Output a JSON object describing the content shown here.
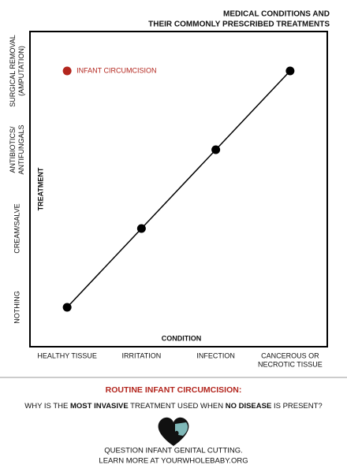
{
  "chart_data": {
    "type": "line",
    "title": [
      "MEDICAL CONDITIONS AND",
      "THEIR COMMONLY PRESCRIBED TREATMENTS"
    ],
    "x_label": "CONDITION",
    "y_label": "TREATMENT",
    "categories": [
      [
        "HEALTHY TISSUE"
      ],
      [
        "IRRITATION"
      ],
      [
        "INFECTION"
      ],
      [
        "CANCEROUS OR",
        "NECROTIC TISSUE"
      ]
    ],
    "y_categories": [
      [
        "NOTHING"
      ],
      [
        "CREAM/SALVE"
      ],
      [
        "ANTIBIOTICS/",
        "ANTIFUNGALS"
      ],
      [
        "SURGICAL REMOVAL",
        "(AMPUTATION)"
      ]
    ],
    "series": [
      {
        "color": "#000000",
        "x": [
          0,
          1,
          2,
          3
        ],
        "values": [
          0,
          1,
          2,
          3
        ]
      },
      {
        "name": "INFANT CIRCUMCISION",
        "color": "#b3261e",
        "x": [
          0
        ],
        "values": [
          3
        ]
      }
    ],
    "xlim": [
      -0.5,
      3.5
    ],
    "ylim": [
      -0.5,
      3.5
    ]
  },
  "footer": {
    "heading": "ROUTINE INFANT CIRCUMCISION:",
    "question": [
      "WHY IS THE ",
      "MOST INVASIVE",
      " TREATMENT USED WHEN ",
      "NO DISEASE",
      " IS PRESENT?"
    ],
    "lines": [
      "QUESTION INFANT GENITAL CUTTING.",
      "LEARN MORE AT YOURWHOLEBABY.ORG"
    ]
  }
}
